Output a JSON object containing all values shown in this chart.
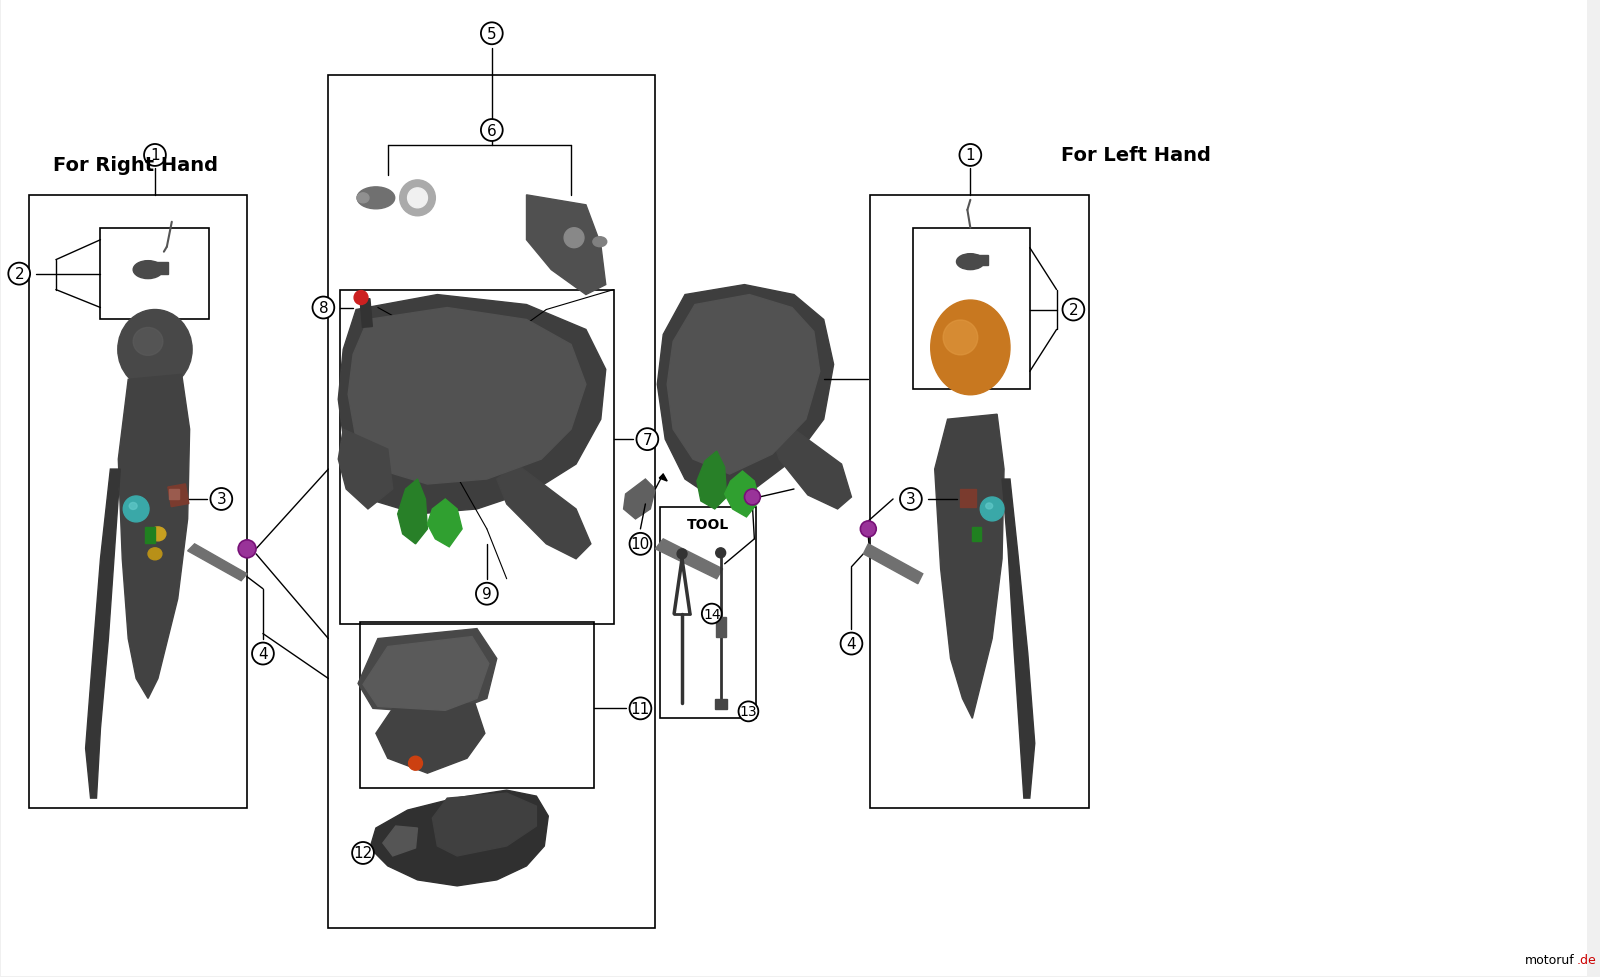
{
  "bg_color": "#f0f0f0",
  "right_hand_label": "For Right Hand",
  "left_hand_label": "For Left Hand",
  "tool_label": "TOOL",
  "label_fontsize": 13,
  "number_fontsize": 11,
  "dark_gray": "#3a3a3a",
  "mid_gray": "#606060",
  "light_gray": "#909090",
  "orange_color": "#c87820",
  "teal_color": "#3aa8a8",
  "green_color": "#30a030",
  "red_color": "#cc2020",
  "gold_color": "#c8a020",
  "purple_color": "#993399",
  "brown_color": "#7a3b2e",
  "watermark_color": "#cc0000",
  "box_color": "#000000",
  "line_color": "#000000",
  "circle_num_r": 11
}
